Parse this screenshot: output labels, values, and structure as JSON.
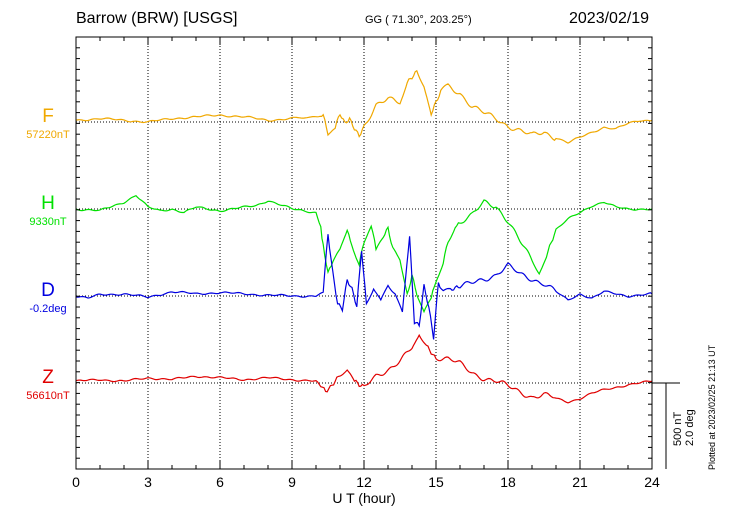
{
  "header": {
    "station": "Barrow (BRW)  [USGS]",
    "coords": "GG ( 71.30°, 203.25°)",
    "date": "2023/02/19"
  },
  "footer": "Plotted at 2023/02/25 21:13 UT",
  "scale": {
    "field": "500 nT",
    "angle": "2.0 deg"
  },
  "colors": {
    "F": "#f0a800",
    "H": "#00e000",
    "D": "#0000e0",
    "Z": "#e00000"
  },
  "chart_data": {
    "type": "line",
    "xlabel": "U T (hour)",
    "xlim": [
      0,
      24
    ],
    "xticks": [
      "0",
      "3",
      "6",
      "9",
      "12",
      "15",
      "18",
      "21",
      "24"
    ],
    "channels": [
      {
        "label": "F",
        "baseline": "57220nT",
        "points": [
          [
            0,
            10
          ],
          [
            1,
            20
          ],
          [
            2,
            10
          ],
          [
            3,
            0
          ],
          [
            4,
            20
          ],
          [
            5,
            30
          ],
          [
            6,
            40
          ],
          [
            7,
            30
          ],
          [
            8,
            10
          ],
          [
            9,
            20
          ],
          [
            9.8,
            30
          ],
          [
            10.3,
            40
          ],
          [
            10.5,
            -60
          ],
          [
            10.8,
            -40
          ],
          [
            11,
            40
          ],
          [
            11.2,
            -10
          ],
          [
            11.4,
            20
          ],
          [
            11.6,
            -30
          ],
          [
            11.8,
            -70
          ],
          [
            12,
            -20
          ],
          [
            12.5,
            100
          ],
          [
            13,
            130
          ],
          [
            13.5,
            110
          ],
          [
            13.8,
            240
          ],
          [
            14.2,
            300
          ],
          [
            14.5,
            210
          ],
          [
            14.8,
            40
          ],
          [
            15.2,
            170
          ],
          [
            15.5,
            210
          ],
          [
            16,
            170
          ],
          [
            16.5,
            90
          ],
          [
            17,
            50
          ],
          [
            17.5,
            20
          ],
          [
            18,
            -20
          ],
          [
            18.5,
            -50
          ],
          [
            19,
            -80
          ],
          [
            19.5,
            -60
          ],
          [
            20,
            -90
          ],
          [
            20.5,
            -120
          ],
          [
            21,
            -90
          ],
          [
            21.5,
            -60
          ],
          [
            22,
            -30
          ],
          [
            22.5,
            -40
          ],
          [
            23,
            -10
          ],
          [
            23.5,
            10
          ],
          [
            24,
            10
          ]
        ]
      },
      {
        "label": "H",
        "baseline": "9330nT",
        "points": [
          [
            0,
            0
          ],
          [
            1,
            -10
          ],
          [
            2,
            40
          ],
          [
            2.5,
            80
          ],
          [
            3,
            10
          ],
          [
            3.5,
            -10
          ],
          [
            4,
            0
          ],
          [
            4.5,
            -20
          ],
          [
            5,
            10
          ],
          [
            6,
            -10
          ],
          [
            7,
            10
          ],
          [
            7.5,
            20
          ],
          [
            8,
            50
          ],
          [
            9,
            0
          ],
          [
            10,
            -20
          ],
          [
            10.2,
            -100
          ],
          [
            10.3,
            -220
          ],
          [
            10.5,
            -380
          ],
          [
            10.7,
            -300
          ],
          [
            11,
            -240
          ],
          [
            11.3,
            -120
          ],
          [
            11.5,
            -200
          ],
          [
            11.8,
            -320
          ],
          [
            12,
            -180
          ],
          [
            12.3,
            -100
          ],
          [
            12.5,
            -240
          ],
          [
            12.8,
            -160
          ],
          [
            13,
            -120
          ],
          [
            13.2,
            -240
          ],
          [
            13.5,
            -300
          ],
          [
            13.8,
            -500
          ],
          [
            14,
            -380
          ],
          [
            14.2,
            -480
          ],
          [
            14.5,
            -600
          ],
          [
            14.8,
            -520
          ],
          [
            15,
            -420
          ],
          [
            15.3,
            -300
          ],
          [
            15.5,
            -180
          ],
          [
            15.8,
            -100
          ],
          [
            16,
            -80
          ],
          [
            16.5,
            -40
          ],
          [
            17,
            40
          ],
          [
            17.5,
            20
          ],
          [
            18,
            -70
          ],
          [
            18.5,
            -190
          ],
          [
            19,
            -300
          ],
          [
            19.3,
            -360
          ],
          [
            19.6,
            -280
          ],
          [
            20,
            -120
          ],
          [
            20.5,
            -60
          ],
          [
            21,
            -20
          ],
          [
            21.5,
            20
          ],
          [
            22,
            40
          ],
          [
            22.5,
            10
          ],
          [
            23,
            0
          ],
          [
            23.5,
            0
          ],
          [
            24,
            0
          ]
        ]
      },
      {
        "label": "D",
        "baseline": "-0.2deg",
        "points": [
          [
            0,
            0
          ],
          [
            0.5,
            -0.05
          ],
          [
            1,
            0.03
          ],
          [
            2,
            0.05
          ],
          [
            3,
            -0.03
          ],
          [
            4,
            0.1
          ],
          [
            5,
            0.05
          ],
          [
            6,
            0.08
          ],
          [
            7,
            0.05
          ],
          [
            8,
            0.02
          ],
          [
            9,
            0
          ],
          [
            10,
            0
          ],
          [
            10.3,
            0.1
          ],
          [
            10.5,
            1.4
          ],
          [
            10.7,
            0.5
          ],
          [
            10.9,
            -0.2
          ],
          [
            11.1,
            -0.3
          ],
          [
            11.3,
            0.4
          ],
          [
            11.5,
            0.2
          ],
          [
            11.7,
            -0.2
          ],
          [
            11.9,
            1.1
          ],
          [
            12.1,
            -0.2
          ],
          [
            12.4,
            0.2
          ],
          [
            12.7,
            -0.1
          ],
          [
            13,
            0.3
          ],
          [
            13.3,
            0.1
          ],
          [
            13.6,
            -0.4
          ],
          [
            13.9,
            1.4
          ],
          [
            14.1,
            -0.6
          ],
          [
            14.3,
            -0.7
          ],
          [
            14.5,
            0.2
          ],
          [
            14.7,
            -0.3
          ],
          [
            14.9,
            -1.0
          ],
          [
            15.1,
            0.3
          ],
          [
            15.3,
            0.1
          ],
          [
            15.6,
            0.1
          ],
          [
            16,
            0.2
          ],
          [
            16.5,
            0.3
          ],
          [
            17,
            0.4
          ],
          [
            17.5,
            0.5
          ],
          [
            18,
            0.7
          ],
          [
            18.5,
            0.5
          ],
          [
            19,
            0.4
          ],
          [
            19.5,
            0.3
          ],
          [
            20,
            0.1
          ],
          [
            20.5,
            -0.1
          ],
          [
            21,
            0.05
          ],
          [
            21.5,
            -0.05
          ],
          [
            22,
            0.1
          ],
          [
            23,
            0
          ],
          [
            24,
            0.05
          ]
        ]
      },
      {
        "label": "Z",
        "baseline": "56610nT",
        "points": [
          [
            0,
            10
          ],
          [
            1,
            20
          ],
          [
            2,
            10
          ],
          [
            3,
            30
          ],
          [
            4,
            20
          ],
          [
            5,
            40
          ],
          [
            6,
            30
          ],
          [
            7,
            20
          ],
          [
            8,
            30
          ],
          [
            9,
            20
          ],
          [
            10,
            10
          ],
          [
            10.4,
            -50
          ],
          [
            10.6,
            -20
          ],
          [
            11,
            60
          ],
          [
            11.3,
            80
          ],
          [
            11.6,
            10
          ],
          [
            11.8,
            -20
          ],
          [
            12,
            -30
          ],
          [
            12.5,
            40
          ],
          [
            13,
            80
          ],
          [
            13.5,
            130
          ],
          [
            14,
            200
          ],
          [
            14.3,
            290
          ],
          [
            14.6,
            220
          ],
          [
            15,
            150
          ],
          [
            15.5,
            140
          ],
          [
            16,
            110
          ],
          [
            16.5,
            60
          ],
          [
            17,
            30
          ],
          [
            17.5,
            10
          ],
          [
            18,
            -20
          ],
          [
            18.5,
            -50
          ],
          [
            19,
            -80
          ],
          [
            19.5,
            -70
          ],
          [
            20,
            -90
          ],
          [
            20.5,
            -110
          ],
          [
            21,
            -90
          ],
          [
            21.5,
            -60
          ],
          [
            22,
            -40
          ],
          [
            23,
            -10
          ],
          [
            23.5,
            0
          ],
          [
            24,
            10
          ]
        ]
      }
    ]
  }
}
